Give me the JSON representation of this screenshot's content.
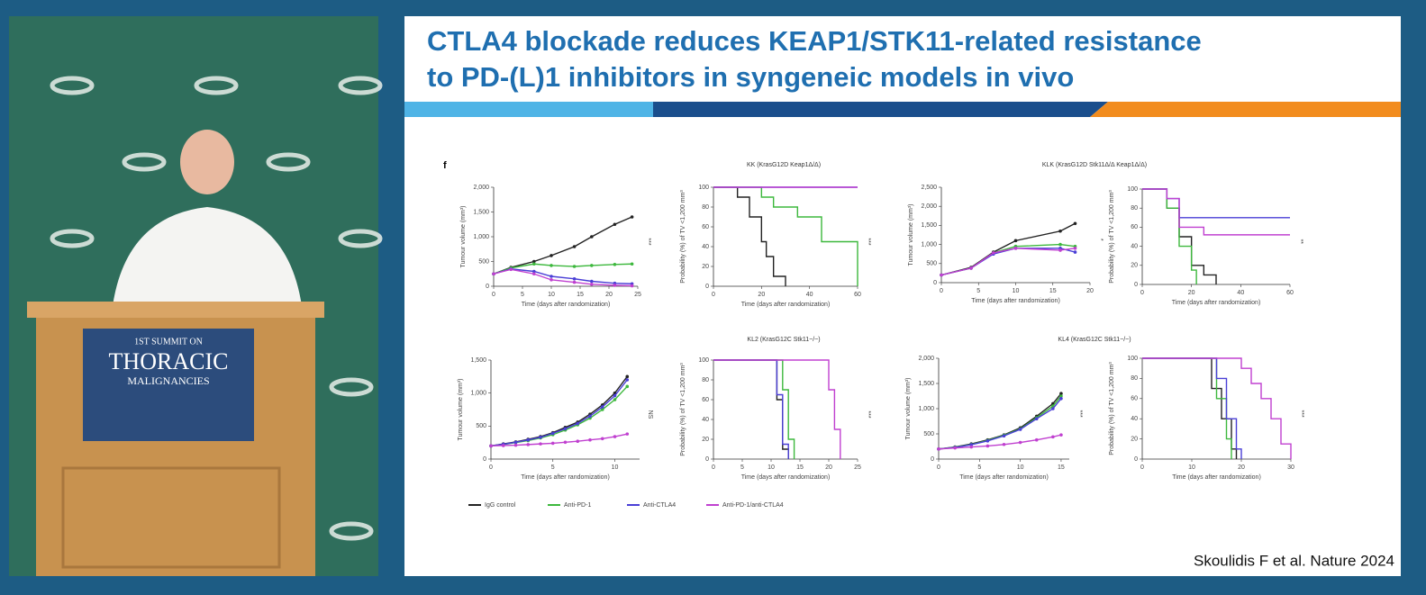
{
  "podium": {
    "line1": "1ST SUMMIT ON",
    "line2": "THORACIC",
    "line3": "MALIGNANCIES"
  },
  "slide": {
    "title_line1": "CTLA4 blockade reduces KEAP1/STK11-related resistance",
    "title_line2": "to PD-(L)1 inhibitors in syngeneic models in vivo",
    "figure_label": "f",
    "citation": "Skoulidis F et al. Nature 2024",
    "group_titles": [
      "KK (KrasG12D Keap1Δ/Δ)",
      "KLK (KrasG12D Stk11Δ/Δ Keap1Δ/Δ)",
      "KL2 (KrasG12C Stk11−/−)",
      "KL4 (KrasG12C Stk11−/−)"
    ],
    "legend": [
      {
        "name": "IgG control",
        "color": "#222222"
      },
      {
        "name": "Anti-PD-1",
        "color": "#3db83d"
      },
      {
        "name": "Anti-CTLA4",
        "color": "#4a3fd6"
      },
      {
        "name": "Anti-PD-1/anti-CTLA4",
        "color": "#c040d0"
      }
    ],
    "panels": [
      {
        "type": "growth",
        "ylabel": "Tumour volume (mm³)",
        "xlabel": "Time (days after randomization)",
        "xlim": [
          0,
          25
        ],
        "xticks": [
          0,
          5,
          10,
          15,
          20,
          25
        ],
        "ylim": [
          0,
          2000
        ],
        "yticks": [
          0,
          500,
          {
            "value": 1000,
            "label": "1,000"
          },
          {
            "value": 1500,
            "label": "1,500"
          },
          {
            "value": 2000,
            "label": "2,000"
          }
        ],
        "annotation": "***",
        "series": [
          {
            "x": [
              0,
              3,
              7,
              10,
              14,
              17,
              21,
              24
            ],
            "values": [
              250,
              380,
              500,
              620,
              800,
              1000,
              1250,
              1400
            ]
          },
          {
            "x": [
              0,
              3,
              7,
              10,
              14,
              17,
              21,
              24
            ],
            "values": [
              250,
              370,
              450,
              420,
              400,
              420,
              440,
              450
            ]
          },
          {
            "x": [
              0,
              3,
              7,
              10,
              14,
              17,
              21,
              24
            ],
            "values": [
              250,
              350,
              300,
              200,
              150,
              100,
              60,
              50
            ]
          },
          {
            "x": [
              0,
              3,
              7,
              10,
              14,
              17,
              21,
              24
            ],
            "values": [
              250,
              340,
              250,
              130,
              80,
              40,
              20,
              10
            ]
          }
        ]
      },
      {
        "type": "survival",
        "ylabel": "Probability (%) of TV <1,200 mm³",
        "xlabel": "Time (days after randomization)",
        "xlim": [
          0,
          60
        ],
        "xticks": [
          0,
          20,
          40,
          60
        ],
        "ylim": [
          0,
          100
        ],
        "yticks": [
          0,
          20,
          40,
          60,
          80,
          100
        ],
        "annotation": "***",
        "series": [
          {
            "x": [
              0,
              10,
              15,
              20,
              22,
              25,
              30
            ],
            "values": [
              100,
              90,
              70,
              45,
              30,
              10,
              0
            ]
          },
          {
            "x": [
              0,
              20,
              25,
              35,
              45,
              60
            ],
            "values": [
              100,
              90,
              80,
              70,
              45,
              0
            ]
          },
          {
            "x": [
              0,
              60
            ],
            "values": [
              100,
              100
            ]
          },
          {
            "x": [
              0,
              60
            ],
            "values": [
              100,
              100
            ]
          }
        ]
      },
      {
        "type": "growth",
        "ylabel": "Tumour volume (mm³)",
        "xlabel": "Time (days after randomization)",
        "xlim": [
          0,
          20
        ],
        "xticks": [
          0,
          5,
          10,
          15,
          20
        ],
        "ylim": [
          0,
          2500
        ],
        "yticks": [
          0,
          500,
          {
            "value": 1000,
            "label": "1,000"
          },
          {
            "value": 1500,
            "label": "1,500"
          },
          {
            "value": 2000,
            "label": "2,000"
          },
          {
            "value": 2500,
            "label": "2,500"
          }
        ],
        "annotation": "*",
        "series": [
          {
            "x": [
              0,
              4,
              7,
              10,
              16,
              18
            ],
            "values": [
              200,
              400,
              800,
              1100,
              1350,
              1550
            ]
          },
          {
            "x": [
              0,
              4,
              7,
              10,
              16,
              18
            ],
            "values": [
              200,
              380,
              780,
              950,
              1000,
              950
            ]
          },
          {
            "x": [
              0,
              4,
              7,
              10,
              16,
              18
            ],
            "values": [
              200,
              380,
              750,
              900,
              900,
              800
            ]
          },
          {
            "x": [
              0,
              4,
              7,
              10,
              16,
              18
            ],
            "values": [
              200,
              380,
              780,
              900,
              850,
              900
            ]
          }
        ]
      },
      {
        "type": "survival",
        "ylabel": "Probability (%) of TV <1,200 mm³",
        "xlabel": "Time (days after randomization)",
        "xlim": [
          0,
          60
        ],
        "xticks": [
          0,
          20,
          40,
          60
        ],
        "ylim": [
          0,
          100
        ],
        "yticks": [
          0,
          20,
          40,
          60,
          80,
          100
        ],
        "annotation": "**",
        "series": [
          {
            "x": [
              0,
              5,
              10,
              15,
              20,
              25,
              30
            ],
            "values": [
              100,
              100,
              80,
              50,
              20,
              10,
              0
            ]
          },
          {
            "x": [
              0,
              5,
              10,
              15,
              20,
              22
            ],
            "values": [
              100,
              100,
              80,
              40,
              15,
              0
            ]
          },
          {
            "x": [
              0,
              10,
              15,
              60
            ],
            "values": [
              100,
              90,
              70,
              70
            ]
          },
          {
            "x": [
              0,
              10,
              15,
              25,
              60
            ],
            "values": [
              100,
              90,
              60,
              52,
              52
            ]
          }
        ]
      },
      {
        "type": "growth",
        "ylabel": "Tumour volume (mm³)",
        "xlabel": "Time (days after randomization)",
        "xlim": [
          0,
          12
        ],
        "xticks": [
          0,
          5,
          10
        ],
        "ylim": [
          0,
          1500
        ],
        "yticks": [
          0,
          500,
          {
            "value": 1000,
            "label": "1,000"
          },
          {
            "value": 1500,
            "label": "1,500"
          }
        ],
        "annotation": "NS",
        "series": [
          {
            "x": [
              0,
              1,
              2,
              3,
              4,
              5,
              6,
              7,
              8,
              9,
              10,
              11
            ],
            "values": [
              200,
              230,
              260,
              300,
              340,
              400,
              480,
              560,
              680,
              820,
              1000,
              1250
            ]
          },
          {
            "x": [
              0,
              1,
              2,
              3,
              4,
              5,
              6,
              7,
              8,
              9,
              10,
              11
            ],
            "values": [
              200,
              220,
              250,
              280,
              320,
              370,
              440,
              520,
              620,
              750,
              900,
              1100
            ]
          },
          {
            "x": [
              0,
              1,
              2,
              3,
              4,
              5,
              6,
              7,
              8,
              9,
              10,
              11
            ],
            "values": [
              200,
              225,
              255,
              290,
              330,
              390,
              460,
              540,
              650,
              790,
              960,
              1200
            ]
          },
          {
            "x": [
              0,
              1,
              2,
              3,
              4,
              5,
              6,
              7,
              8,
              9,
              10,
              11
            ],
            "values": [
              200,
              205,
              210,
              220,
              230,
              240,
              255,
              270,
              290,
              310,
              340,
              380
            ]
          }
        ]
      },
      {
        "type": "survival",
        "ylabel": "Probability (%) of TV <1,200 mm³",
        "xlabel": "Time (days after randomization)",
        "xlim": [
          0,
          25
        ],
        "xticks": [
          0,
          5,
          10,
          15,
          20,
          25
        ],
        "ylim": [
          0,
          100
        ],
        "yticks": [
          0,
          20,
          40,
          60,
          80,
          100
        ],
        "annotation": "***",
        "series": [
          {
            "x": [
              0,
              11,
              12,
              13
            ],
            "values": [
              100,
              60,
              10,
              0
            ]
          },
          {
            "x": [
              0,
              12,
              13,
              14
            ],
            "values": [
              100,
              70,
              20,
              0
            ]
          },
          {
            "x": [
              0,
              11,
              12,
              13
            ],
            "values": [
              100,
              65,
              15,
              0
            ]
          },
          {
            "x": [
              0,
              17,
              20,
              21,
              22
            ],
            "values": [
              100,
              100,
              70,
              30,
              0
            ]
          }
        ]
      },
      {
        "type": "growth",
        "ylabel": "Tumour volume (mm³)",
        "xlabel": "Time (days after randomization)",
        "xlim": [
          0,
          16
        ],
        "xticks": [
          0,
          5,
          10,
          15
        ],
        "ylim": [
          0,
          2000
        ],
        "yticks": [
          0,
          500,
          {
            "value": 1000,
            "label": "1,000"
          },
          {
            "value": 1500,
            "label": "1,500"
          },
          {
            "value": 2000,
            "label": "2,000"
          }
        ],
        "annotation": "***",
        "series": [
          {
            "x": [
              0,
              2,
              4,
              6,
              8,
              10,
              12,
              14,
              15
            ],
            "values": [
              200,
              240,
              300,
              380,
              480,
              620,
              850,
              1100,
              1300
            ]
          },
          {
            "x": [
              0,
              2,
              4,
              6,
              8,
              10,
              12,
              14,
              15
            ],
            "values": [
              200,
              235,
              290,
              370,
              470,
              600,
              820,
              1050,
              1250
            ]
          },
          {
            "x": [
              0,
              2,
              4,
              6,
              8,
              10,
              12,
              14,
              15
            ],
            "values": [
              200,
              230,
              285,
              360,
              460,
              590,
              800,
              1000,
              1200
            ]
          },
          {
            "x": [
              0,
              2,
              4,
              6,
              8,
              10,
              12,
              14,
              15
            ],
            "values": [
              200,
              220,
              240,
              260,
              290,
              330,
              380,
              440,
              480
            ]
          }
        ]
      },
      {
        "type": "survival",
        "ylabel": "Probability (%) of TV <1,200 mm³",
        "xlabel": "Time (days after randomization)",
        "xlim": [
          0,
          30
        ],
        "xticks": [
          0,
          10,
          20,
          30
        ],
        "ylim": [
          0,
          100
        ],
        "yticks": [
          0,
          20,
          40,
          60,
          80,
          100
        ],
        "annotation": "***",
        "series": [
          {
            "x": [
              0,
              14,
              16,
              18,
              19
            ],
            "values": [
              100,
              70,
              40,
              10,
              0
            ]
          },
          {
            "x": [
              0,
              15,
              17,
              18
            ],
            "values": [
              100,
              60,
              20,
              0
            ]
          },
          {
            "x": [
              0,
              15,
              17,
              19,
              20
            ],
            "values": [
              100,
              80,
              40,
              10,
              0
            ]
          },
          {
            "x": [
              0,
              20,
              22,
              24,
              26,
              28,
              30
            ],
            "values": [
              100,
              90,
              75,
              60,
              40,
              15,
              0
            ]
          }
        ]
      }
    ]
  }
}
